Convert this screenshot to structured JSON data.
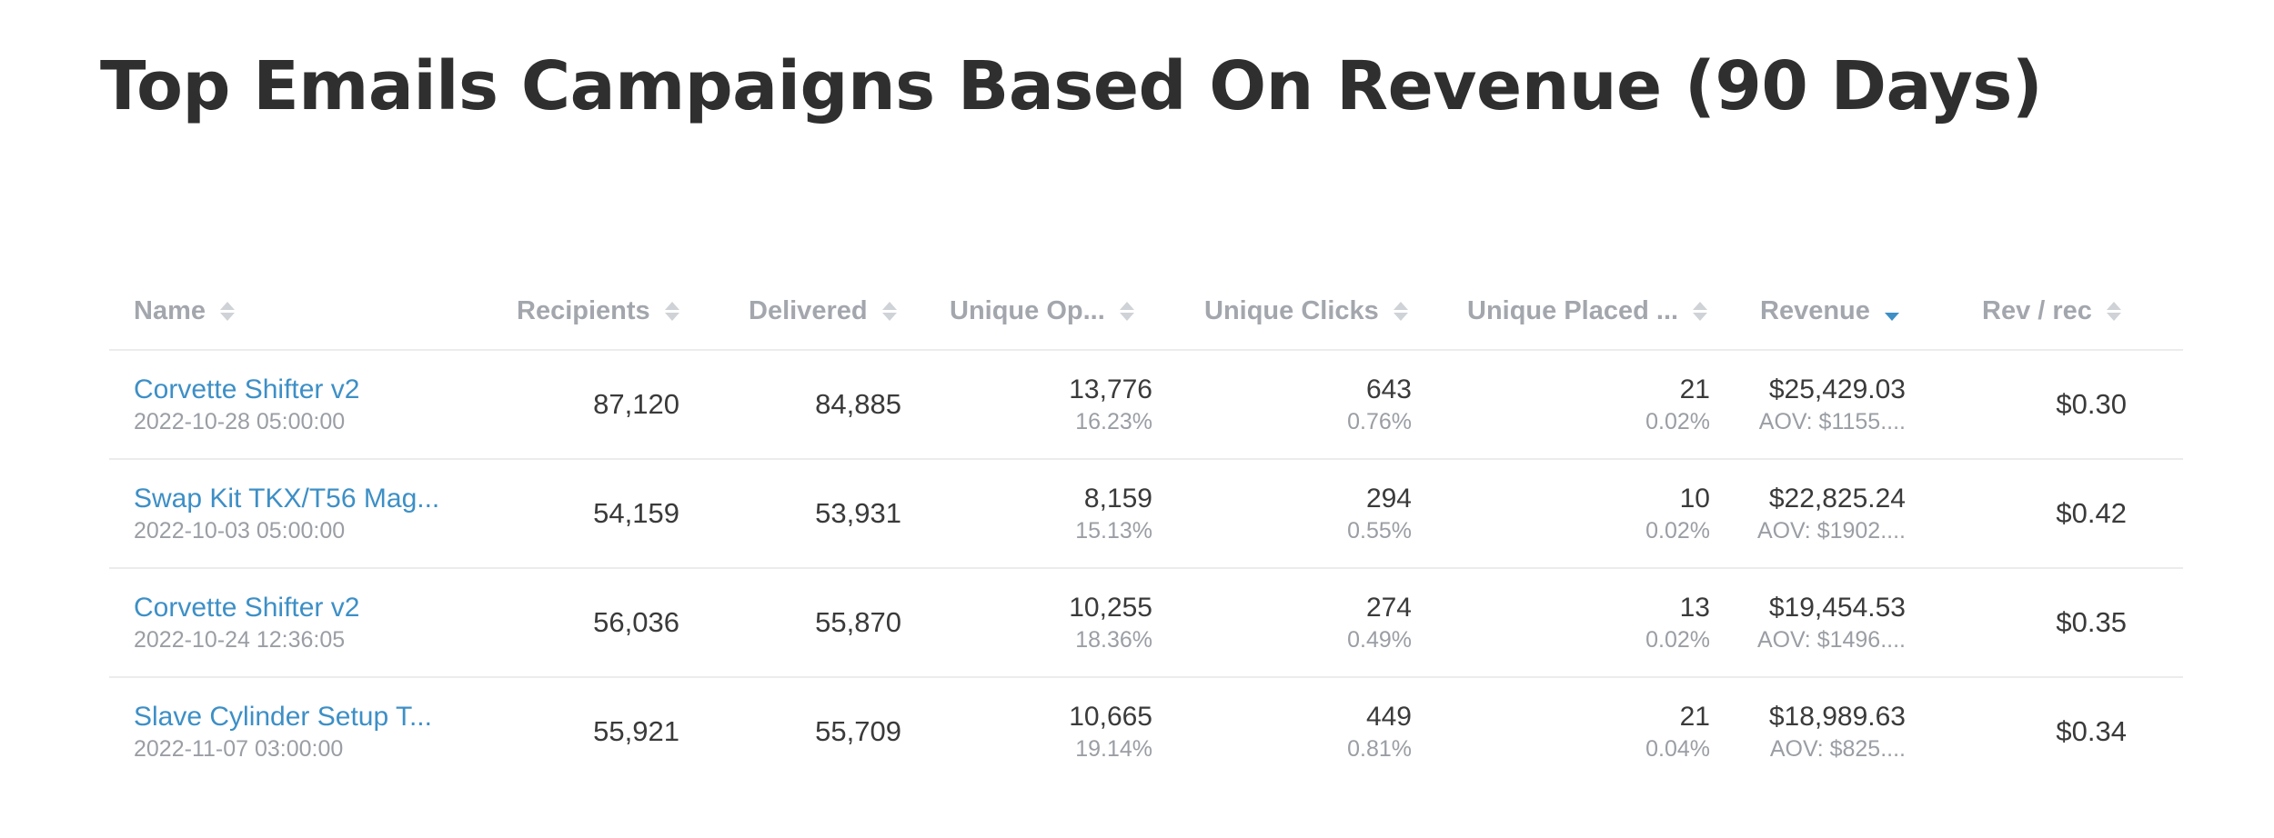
{
  "page": {
    "title": "Top Emails Campaigns Based On Revenue (90 Days)"
  },
  "colors": {
    "link": "#3d8fc6",
    "sort_active": "#3d8fc6",
    "header_text": "#a3a7ad",
    "row_divider": "#ececec"
  },
  "table": {
    "columns": [
      {
        "label": "Name",
        "sort": "none"
      },
      {
        "label": "Recipients",
        "sort": "none"
      },
      {
        "label": "Delivered",
        "sort": "none"
      },
      {
        "label": "Unique Op...",
        "sort": "none"
      },
      {
        "label": "Unique Clicks",
        "sort": "none"
      },
      {
        "label": "Unique Placed ...",
        "sort": "none"
      },
      {
        "label": "Revenue",
        "sort": "descending"
      },
      {
        "label": "Rev / rec",
        "sort": "none"
      }
    ],
    "rows": [
      {
        "name": "Corvette Shifter v2",
        "date": "2022-10-28 05:00:00",
        "recipients": "87,120",
        "delivered": "84,885",
        "opens": "13,776",
        "open_rate": "16.23%",
        "clicks": "643",
        "click_rate": "0.76%",
        "placed": "21",
        "placed_rate": "0.02%",
        "revenue": "$25,429.03",
        "aov": "AOV: $1155....",
        "rev_per_rec": "$0.30"
      },
      {
        "name": "Swap Kit TKX/T56 Mag...",
        "date": "2022-10-03 05:00:00",
        "recipients": "54,159",
        "delivered": "53,931",
        "opens": "8,159",
        "open_rate": "15.13%",
        "clicks": "294",
        "click_rate": "0.55%",
        "placed": "10",
        "placed_rate": "0.02%",
        "revenue": "$22,825.24",
        "aov": "AOV: $1902....",
        "rev_per_rec": "$0.42"
      },
      {
        "name": "Corvette Shifter v2",
        "date": "2022-10-24 12:36:05",
        "recipients": "56,036",
        "delivered": "55,870",
        "opens": "10,255",
        "open_rate": "18.36%",
        "clicks": "274",
        "click_rate": "0.49%",
        "placed": "13",
        "placed_rate": "0.02%",
        "revenue": "$19,454.53",
        "aov": "AOV: $1496....",
        "rev_per_rec": "$0.35"
      },
      {
        "name": "Slave Cylinder Setup T...",
        "date": "2022-11-07 03:00:00",
        "recipients": "55,921",
        "delivered": "55,709",
        "opens": "10,665",
        "open_rate": "19.14%",
        "clicks": "449",
        "click_rate": "0.81%",
        "placed": "21",
        "placed_rate": "0.04%",
        "revenue": "$18,989.63",
        "aov": "AOV: $825....",
        "rev_per_rec": "$0.34"
      }
    ]
  }
}
